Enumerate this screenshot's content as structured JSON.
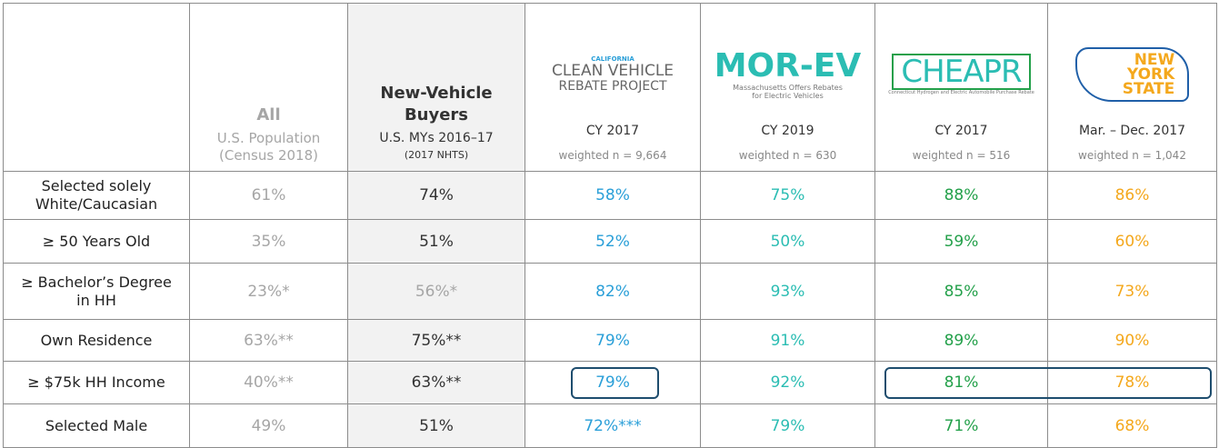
{
  "table": {
    "columns": [
      {
        "title": "All",
        "line1": "U.S. Population",
        "line2": "(Census 2018)",
        "color": "#a6a6a6"
      },
      {
        "title": "New-Vehicle Buyers",
        "line1": "U.S. MYs 2016–17",
        "line2": "(2017 NHTS)",
        "color": "#333333"
      },
      {
        "logo": [
          "CALIFORNIA",
          "CLEAN VEHICLE",
          "REBATE PROJECT"
        ],
        "line1": "CY 2017",
        "line2": "weighted n = 9,664",
        "color": "#2a9fd8"
      },
      {
        "logo": [
          "MOR-EV",
          "Massachusetts Offers Rebates",
          "for Electric Vehicles"
        ],
        "line1": "CY 2019",
        "line2": "weighted n = 630",
        "color": "#2bbdb3"
      },
      {
        "logo": [
          "CHEAPR",
          "Connecticut Hydrogen and Electric Automobile Purchase Rebate"
        ],
        "line1": "CY 2017",
        "line2": "weighted n = 516",
        "color": "#23a04a"
      },
      {
        "logo": [
          "NEW",
          "YORK",
          "STATE"
        ],
        "line1": "Mar. – Dec. 2017",
        "line2": "weighted n = 1,042",
        "color": "#f4a81d"
      }
    ],
    "rows": [
      {
        "label": "Selected solely White/Caucasian",
        "cells": [
          "61%",
          "74%",
          "58%",
          "75%",
          "88%",
          "86%"
        ]
      },
      {
        "label": "≥ 50 Years Old",
        "cells": [
          "35%",
          "51%",
          "52%",
          "50%",
          "59%",
          "60%"
        ]
      },
      {
        "label": "≥ Bachelor’s Degree in HH",
        "cells": [
          "23%*",
          "56%*",
          "82%",
          "93%",
          "85%",
          "73%"
        ]
      },
      {
        "label": "Own Residence",
        "cells": [
          "63%**",
          "75%**",
          "79%",
          "91%",
          "89%",
          "90%"
        ]
      },
      {
        "label": "≥ $75k HH Income",
        "cells": [
          "40%**",
          "63%**",
          "79%",
          "92%",
          "81%",
          "78%"
        ]
      },
      {
        "label": "Selected Male",
        "cells": [
          "49%",
          "51%",
          "72%***",
          "79%",
          "71%",
          "68%"
        ]
      }
    ]
  }
}
